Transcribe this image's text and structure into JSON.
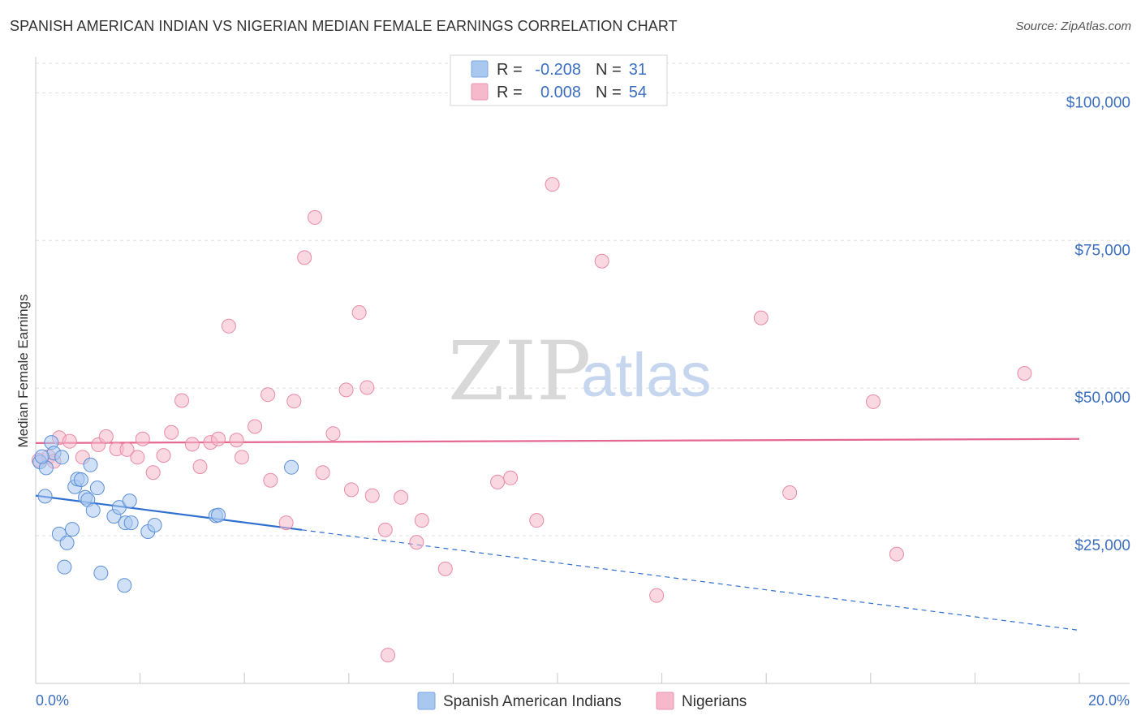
{
  "header": {
    "title": "SPANISH AMERICAN INDIAN VS NIGERIAN MEDIAN FEMALE EARNINGS CORRELATION CHART",
    "source": "Source: ZipAtlas.com"
  },
  "watermark": {
    "zip": "ZIP",
    "atlas": "atlas"
  },
  "legend_top": {
    "rows": [
      {
        "r_label": "R =",
        "r_value": "-0.208",
        "n_label": "N =",
        "n_value": "31",
        "color": "#a9c8f0"
      },
      {
        "r_label": "R =",
        "r_value": "0.008",
        "n_label": "N =",
        "n_value": "54",
        "color": "#f6b8cb"
      }
    ]
  },
  "legend_bottom": {
    "items": [
      {
        "label": "Spanish American Indians",
        "color": "#a9c8f0"
      },
      {
        "label": "Nigerians",
        "color": "#f6b8cb"
      }
    ]
  },
  "chart_data": {
    "type": "scatter",
    "title": "SPANISH AMERICAN INDIAN VS NIGERIAN MEDIAN FEMALE EARNINGS CORRELATION CHART",
    "xlabel": "",
    "ylabel": "Median Female Earnings",
    "xlim": [
      0,
      20
    ],
    "ylim": [
      0,
      105000
    ],
    "x_tick_labels": [
      "0.0%",
      "20.0%"
    ],
    "y_ticks": [
      {
        "value": 25000,
        "label": "$25,000"
      },
      {
        "value": 50000,
        "label": "$50,000"
      },
      {
        "value": 75000,
        "label": "$75,000"
      },
      {
        "value": 100000,
        "label": "$100,000"
      }
    ],
    "grid": true,
    "series": [
      {
        "name": "Spanish American Indians",
        "color": "#a9c8f0",
        "stroke": "#5b8fd6",
        "trend_color": "#2f6fd0",
        "trend": {
          "x0": 0,
          "y0": 31800,
          "x1": 5.1,
          "y1": 26000,
          "dash_to_x": 20,
          "dash_to_y": 9000
        },
        "points": [
          {
            "x": 0.08,
            "y": 37500
          },
          {
            "x": 0.2,
            "y": 36500
          },
          {
            "x": 0.3,
            "y": 40800
          },
          {
            "x": 0.35,
            "y": 39000
          },
          {
            "x": 0.5,
            "y": 38300
          },
          {
            "x": 0.18,
            "y": 31700
          },
          {
            "x": 0.45,
            "y": 25300
          },
          {
            "x": 0.55,
            "y": 19700
          },
          {
            "x": 0.6,
            "y": 23800
          },
          {
            "x": 0.7,
            "y": 26100
          },
          {
            "x": 0.75,
            "y": 33300
          },
          {
            "x": 0.8,
            "y": 34600
          },
          {
            "x": 0.87,
            "y": 34500
          },
          {
            "x": 0.95,
            "y": 31500
          },
          {
            "x": 1.0,
            "y": 31100
          },
          {
            "x": 1.05,
            "y": 37000
          },
          {
            "x": 1.1,
            "y": 29300
          },
          {
            "x": 1.18,
            "y": 33100
          },
          {
            "x": 1.25,
            "y": 18700
          },
          {
            "x": 1.5,
            "y": 28300
          },
          {
            "x": 1.6,
            "y": 29800
          },
          {
            "x": 1.7,
            "y": 16600
          },
          {
            "x": 1.72,
            "y": 27200
          },
          {
            "x": 1.8,
            "y": 30900
          },
          {
            "x": 1.83,
            "y": 27200
          },
          {
            "x": 2.15,
            "y": 25700
          },
          {
            "x": 2.28,
            "y": 26800
          },
          {
            "x": 3.45,
            "y": 28400
          },
          {
            "x": 3.5,
            "y": 28500
          },
          {
            "x": 4.9,
            "y": 36600
          },
          {
            "x": 0.12,
            "y": 38400
          }
        ]
      },
      {
        "name": "Nigerians",
        "color": "#f6b8cb",
        "stroke": "#e88aa6",
        "trend_color": "#e4688f",
        "trend": {
          "x0": 0,
          "y0": 40700,
          "x1": 20,
          "y1": 41400
        },
        "points": [
          {
            "x": 0.06,
            "y": 37800
          },
          {
            "x": 0.25,
            "y": 38400
          },
          {
            "x": 0.35,
            "y": 37600
          },
          {
            "x": 0.45,
            "y": 41600
          },
          {
            "x": 0.65,
            "y": 41000
          },
          {
            "x": 0.9,
            "y": 38300
          },
          {
            "x": 1.2,
            "y": 40400
          },
          {
            "x": 1.35,
            "y": 41800
          },
          {
            "x": 1.55,
            "y": 39700
          },
          {
            "x": 1.75,
            "y": 39600
          },
          {
            "x": 1.95,
            "y": 38300
          },
          {
            "x": 2.05,
            "y": 41400
          },
          {
            "x": 2.25,
            "y": 35700
          },
          {
            "x": 2.45,
            "y": 38600
          },
          {
            "x": 2.6,
            "y": 42500
          },
          {
            "x": 2.8,
            "y": 47900
          },
          {
            "x": 3.0,
            "y": 40500
          },
          {
            "x": 3.15,
            "y": 36700
          },
          {
            "x": 3.35,
            "y": 40800
          },
          {
            "x": 3.5,
            "y": 41400
          },
          {
            "x": 3.7,
            "y": 60500
          },
          {
            "x": 3.85,
            "y": 41200
          },
          {
            "x": 3.95,
            "y": 38300
          },
          {
            "x": 4.2,
            "y": 43500
          },
          {
            "x": 4.45,
            "y": 48900
          },
          {
            "x": 4.5,
            "y": 34400
          },
          {
            "x": 4.8,
            "y": 27200
          },
          {
            "x": 4.95,
            "y": 47800
          },
          {
            "x": 5.15,
            "y": 72100
          },
          {
            "x": 5.35,
            "y": 78900
          },
          {
            "x": 5.5,
            "y": 35700
          },
          {
            "x": 5.7,
            "y": 42300
          },
          {
            "x": 5.95,
            "y": 49700
          },
          {
            "x": 6.05,
            "y": 32800
          },
          {
            "x": 6.2,
            "y": 62800
          },
          {
            "x": 6.35,
            "y": 50100
          },
          {
            "x": 6.45,
            "y": 31800
          },
          {
            "x": 6.7,
            "y": 26000
          },
          {
            "x": 6.75,
            "y": 4800
          },
          {
            "x": 7.0,
            "y": 31500
          },
          {
            "x": 7.3,
            "y": 23900
          },
          {
            "x": 7.4,
            "y": 27600
          },
          {
            "x": 7.85,
            "y": 19400
          },
          {
            "x": 8.85,
            "y": 34100
          },
          {
            "x": 9.1,
            "y": 34800
          },
          {
            "x": 9.6,
            "y": 27600
          },
          {
            "x": 9.9,
            "y": 84500
          },
          {
            "x": 10.85,
            "y": 71500
          },
          {
            "x": 11.9,
            "y": 14900
          },
          {
            "x": 13.9,
            "y": 61900
          },
          {
            "x": 14.45,
            "y": 32300
          },
          {
            "x": 16.05,
            "y": 47700
          },
          {
            "x": 16.5,
            "y": 21900
          },
          {
            "x": 18.95,
            "y": 52500
          }
        ]
      }
    ]
  }
}
